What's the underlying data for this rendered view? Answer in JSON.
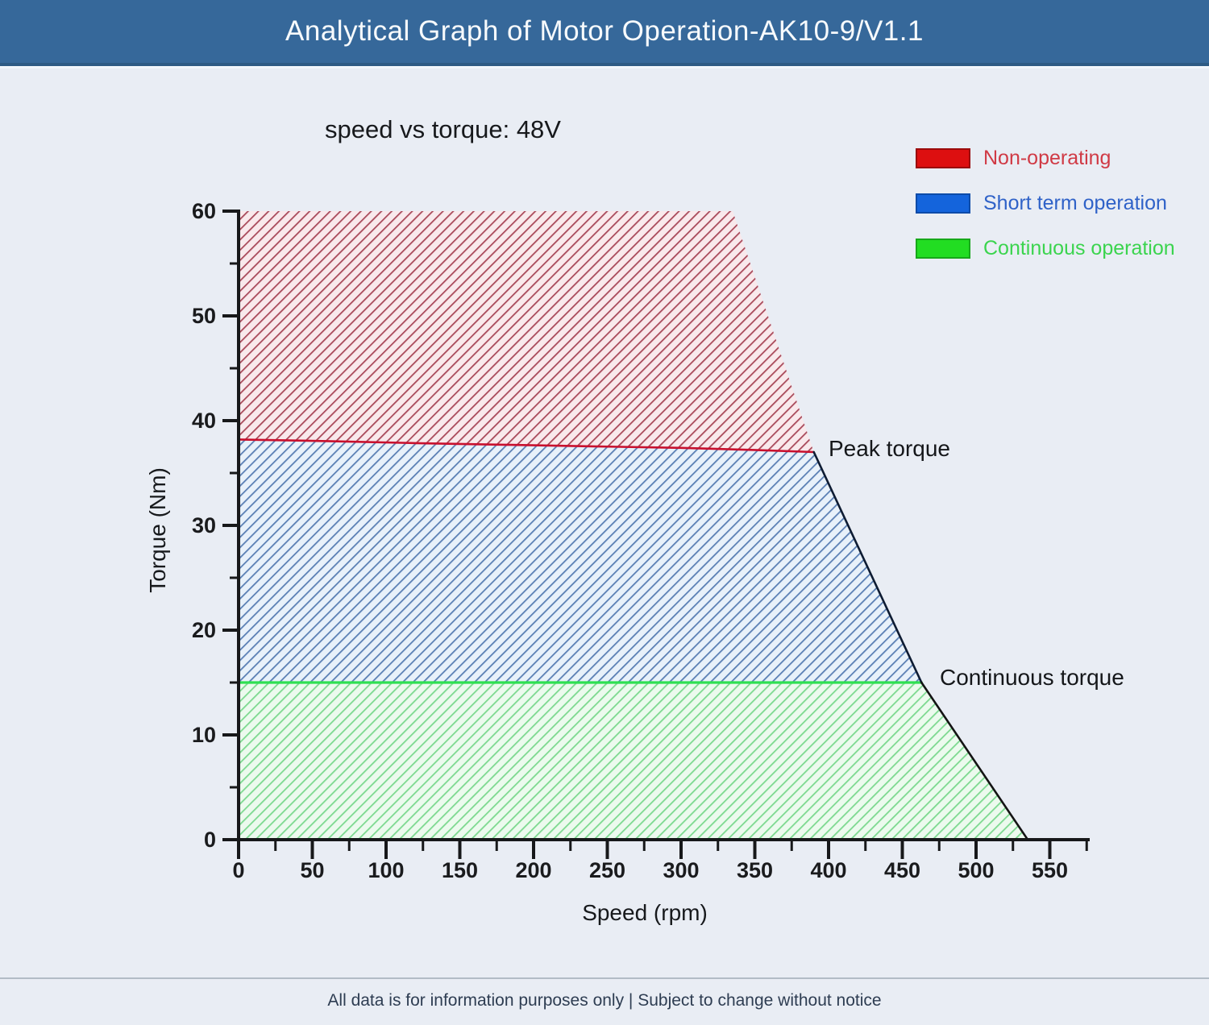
{
  "header": {
    "title": "Analytical Graph of Motor Operation-AK10-9/V1.1"
  },
  "footer": {
    "text": "All data is for information purposes only | Subject to change without notice"
  },
  "colors": {
    "titlebar_bg": "#36689a",
    "page_bg": "#e9edf4",
    "axis": "#17181a",
    "peak_line": "#c8102e",
    "continuous_line": "#2ee052",
    "short_term_edge": "#0e1c33",
    "continuous_edge": "#141414"
  },
  "chart_data": {
    "type": "area",
    "title": "speed vs torque: 48V",
    "xlabel": "Speed (rpm)",
    "ylabel": "Torque (Nm)",
    "xlim": [
      0,
      575
    ],
    "ylim": [
      0,
      60
    ],
    "x_major_ticks": [
      0,
      50,
      100,
      150,
      200,
      250,
      300,
      350,
      400,
      450,
      500,
      550
    ],
    "x_minor_step": 25,
    "y_major_ticks": [
      0,
      10,
      20,
      30,
      40,
      50,
      60
    ],
    "y_minor_step": 5,
    "grid": false,
    "legend_position": "upper right",
    "legend": [
      {
        "label": "Non-operating",
        "color": "#dd0f10",
        "border": "#9a0b0c",
        "text_color": "#d03a45"
      },
      {
        "label": "Short term operation",
        "color": "#1464dc",
        "border": "#0d4ba8",
        "text_color": "#2f62c8"
      },
      {
        "label": "Continuous operation",
        "color": "#22dd22",
        "border": "#17a81a",
        "text_color": "#3bd44e"
      }
    ],
    "regions": [
      {
        "name": "Non-operating",
        "hatch_bg": "#f9e9ec",
        "hatch_line": "#a9495a",
        "points": [
          [
            0,
            60
          ],
          [
            335,
            60
          ],
          [
            390,
            37
          ],
          [
            350,
            37.2
          ],
          [
            300,
            37.4
          ],
          [
            240,
            37.55
          ],
          [
            180,
            37.7
          ],
          [
            120,
            37.85
          ],
          [
            60,
            38.05
          ],
          [
            0,
            38.2
          ]
        ]
      },
      {
        "name": "Short term operation",
        "hatch_bg": "#e8f1fa",
        "hatch_line": "#5a7fb4",
        "points": [
          [
            0,
            38.2
          ],
          [
            60,
            38.05
          ],
          [
            120,
            37.85
          ],
          [
            180,
            37.7
          ],
          [
            240,
            37.55
          ],
          [
            300,
            37.4
          ],
          [
            350,
            37.2
          ],
          [
            390,
            37
          ],
          [
            463,
            15
          ],
          [
            0,
            15
          ]
        ]
      },
      {
        "name": "Continuous operation",
        "hatch_bg": "#ecfaee",
        "hatch_line": "#7cd98f",
        "points": [
          [
            0,
            15
          ],
          [
            463,
            15
          ],
          [
            535,
            0
          ],
          [
            0,
            0
          ]
        ]
      }
    ],
    "lines": [
      {
        "name": "peak-torque-line",
        "color": "#c8102e",
        "width": 2.6,
        "points": [
          [
            0,
            38.2
          ],
          [
            60,
            38.05
          ],
          [
            120,
            37.85
          ],
          [
            180,
            37.7
          ],
          [
            240,
            37.55
          ],
          [
            300,
            37.4
          ],
          [
            350,
            37.2
          ],
          [
            390,
            37
          ]
        ]
      },
      {
        "name": "continuous-torque-line",
        "color": "#2ee052",
        "width": 3.2,
        "points": [
          [
            0,
            15
          ],
          [
            463,
            15
          ]
        ]
      },
      {
        "name": "short-term-edge",
        "color": "#0e1c33",
        "width": 2.6,
        "points": [
          [
            390,
            37
          ],
          [
            463,
            15
          ]
        ]
      },
      {
        "name": "continuous-edge",
        "color": "#141414",
        "width": 2.6,
        "points": [
          [
            463,
            15
          ],
          [
            535,
            0
          ]
        ]
      }
    ],
    "annotations": [
      {
        "text": "Peak torque",
        "x": 400,
        "y": 37
      },
      {
        "text": "Continuous torque",
        "x": 478,
        "y": 15
      }
    ],
    "key_points": {
      "peak_torque_at_0rpm_nm": 38.2,
      "peak_torque_nm": 37,
      "peak_corner_rpm": 390,
      "continuous_torque_nm": 15,
      "continuous_corner_rpm": 463,
      "max_speed_rpm": 535,
      "nonoperating_top_right_rpm": 335
    }
  }
}
